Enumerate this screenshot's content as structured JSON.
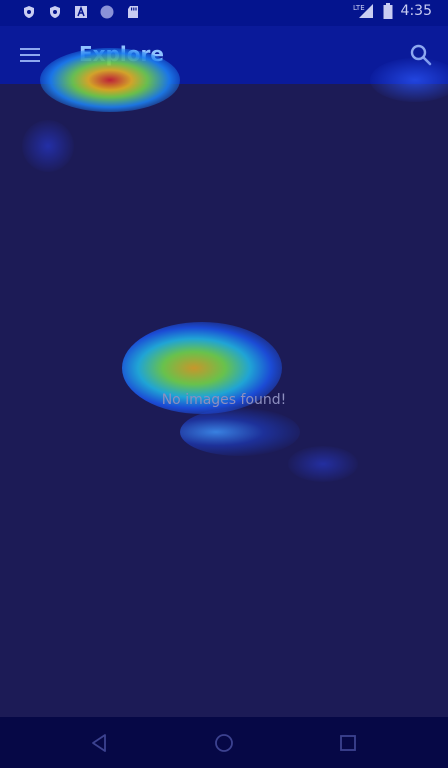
{
  "status_bar": {
    "time": "4:35",
    "network_label": "LTE",
    "icons": [
      "shield-icon",
      "shield-icon",
      "a-icon",
      "circle-icon",
      "sd-card-icon",
      "signal-icon",
      "battery-icon"
    ]
  },
  "app_bar": {
    "title": "Explore",
    "menu_icon": "hamburger-menu-icon",
    "search_icon": "search-icon"
  },
  "main": {
    "empty_message": "No images found!"
  },
  "nav_bar": {
    "back_icon": "back-icon",
    "home_icon": "home-icon",
    "recents_icon": "recents-icon"
  },
  "colors": {
    "status_bar": "#04148e",
    "app_bar": "#0a1a9a",
    "background": "#1c1b56",
    "nav_bar": "#060846",
    "title": "#8fc2ff"
  }
}
